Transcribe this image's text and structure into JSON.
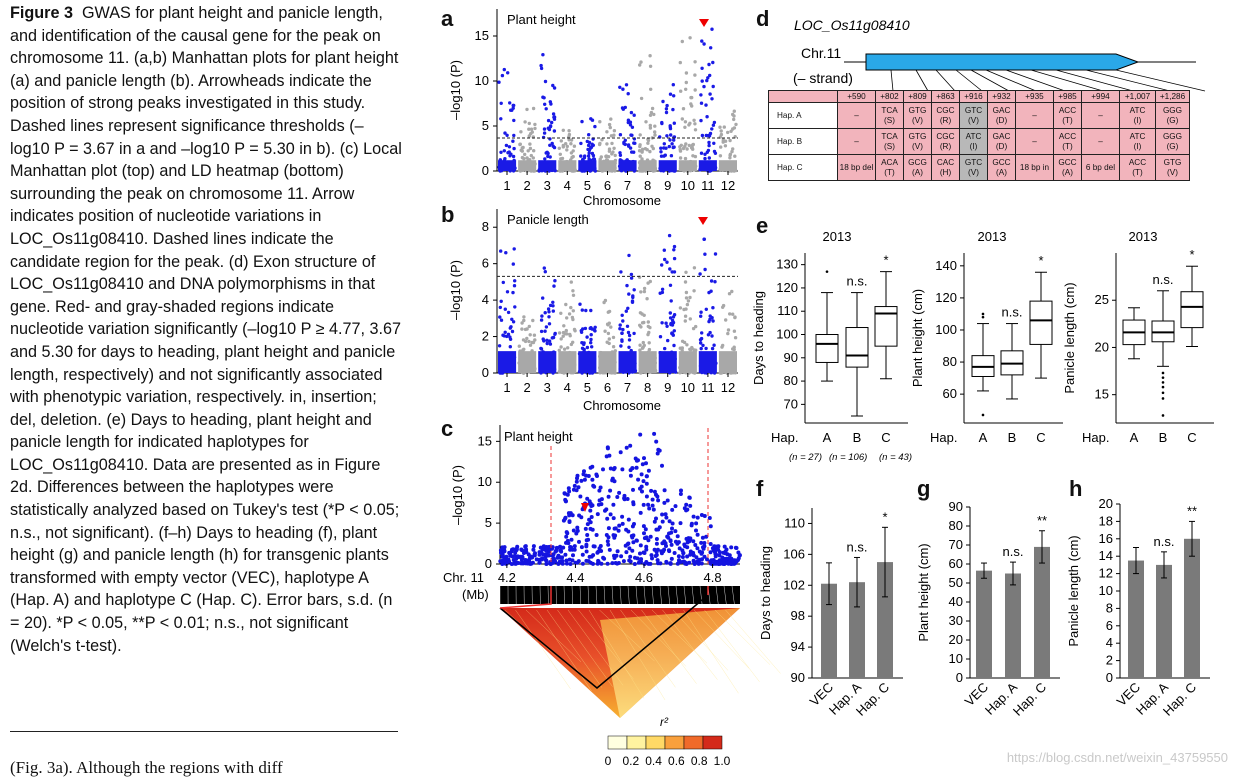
{
  "caption": {
    "fig_label": "Figure 3",
    "title": "GWAS for plant height and panicle length, and identification of the causal gene for the peak on chromosome 11.",
    "ab_text": "(a,b) Manhattan plots for plant height (a) and panicle length (b). Arrowheads indicate the position of strong peaks investigated in this study. Dashed lines represent significance thresholds (–log10 P = 3.67 in a and –log10 P = 5.30 in b).",
    "c_text": "(c) Local Manhattan plot (top) and LD heatmap (bottom) surrounding the peak on chromosome 11. Arrow indicates position of nucleotide variations in LOC_Os11g08410. Dashed lines indicate the candidate region for the peak.",
    "d_text": "(d) Exon structure of LOC_Os11g08410 and DNA polymorphisms in that gene. Red- and gray-shaded regions indicate nucleotide variation significantly (–log10 P ≥ 4.77, 3.67 and 5.30 for days to heading, plant height and panicle length, respectively) and not significantly associated with phenotypic variation, respectively. in, insertion; del, deletion.",
    "e_text": "(e) Days to heading, plant height and panicle length for indicated haplotypes for LOC_Os11g08410. Data are presented as in Figure 2d. Differences between the haplotypes were statistically analyzed based on Tukey's test (*P < 0.05; n.s., not significant).",
    "fh_text": "(f–h) Days to heading (f), plant height (g) and panicle length (h) for transgenic plants transformed with empty vector (VEC), haplotype A (Hap. A) and haplotype C (Hap. C). Error bars, s.d. (n = 20). *P < 0.05, **P < 0.01; n.s., not significant (Welch's t-test).",
    "body_fragment": "(Fig. 3a). Although the regions with diff"
  },
  "panel_labels": {
    "a": "a",
    "b": "b",
    "c": "c",
    "d": "d",
    "e": "e",
    "f": "f",
    "g": "g",
    "h": "h"
  },
  "watermark": "https://blog.csdn.net/weixin_43759550",
  "chart_data": [
    {
      "id": "a",
      "type": "scatter",
      "title": "Plant height",
      "xlabel": "Chromosome",
      "ylabel": "–log10 (P)",
      "categories": [
        "1",
        "2",
        "3",
        "4",
        "5",
        "6",
        "7",
        "8",
        "9",
        "10",
        "11",
        "12"
      ],
      "ylim": [
        0,
        18
      ],
      "yticks": [
        0,
        5,
        10,
        15
      ],
      "threshold": 3.67,
      "peak_max_by_chromosome": [
        12,
        7,
        13,
        5,
        6,
        6,
        10,
        13,
        10,
        15,
        16.5,
        7
      ]
    },
    {
      "id": "b",
      "type": "scatter",
      "title": "Panicle length",
      "xlabel": "Chromosome",
      "ylabel": "–log10 (P)",
      "categories": [
        "1",
        "2",
        "3",
        "4",
        "5",
        "6",
        "7",
        "8",
        "9",
        "10",
        "11",
        "12"
      ],
      "ylim": [
        0,
        9
      ],
      "yticks": [
        0,
        2,
        4,
        6,
        8
      ],
      "threshold": 5.3,
      "peak_max_by_chromosome": [
        7,
        3.5,
        6,
        5,
        4,
        4,
        6.5,
        6,
        8.5,
        6,
        8.5,
        4.5
      ]
    },
    {
      "id": "c",
      "type": "scatter",
      "title": "Plant height",
      "ylabel": "–log10 (P)",
      "xlabel_line1": "Chr. 11",
      "xlabel_line2": "(Mb)",
      "xlim": [
        4.18,
        4.88
      ],
      "xticks": [
        "4.2",
        "4.4",
        "4.6",
        "4.8"
      ],
      "ylim": [
        0,
        17
      ],
      "yticks": [
        0,
        5,
        10,
        15
      ],
      "candidate_region_mb": [
        4.33,
        4.79
      ],
      "ld_legend_title": "r²",
      "ld_legend_ticks": [
        "0",
        "0.2",
        "0.4",
        "0.6",
        "0.8",
        "1.0"
      ]
    },
    {
      "id": "d",
      "type": "table",
      "gene": "LOC_Os11g08410",
      "chromosome": "Chr.11",
      "strand": "(– strand)",
      "positions": [
        "+590",
        "+802",
        "+809",
        "+863",
        "+916",
        "+932",
        "+935",
        "+985",
        "+994",
        "+1,007",
        "+1,286"
      ],
      "haplotypes": [
        {
          "name": "Hap. A",
          "cells": [
            [
              "–",
              ""
            ],
            [
              "TCA",
              "(S)"
            ],
            [
              "GTG",
              "(V)"
            ],
            [
              "CGC",
              "(R)"
            ],
            [
              "GTC",
              "(V)"
            ],
            [
              "GAC",
              "(D)"
            ],
            [
              "–",
              ""
            ],
            [
              "ACC",
              "(T)"
            ],
            [
              "–",
              ""
            ],
            [
              "ATC",
              "(I)"
            ],
            [
              "GGG",
              "(G)"
            ]
          ]
        },
        {
          "name": "Hap. B",
          "cells": [
            [
              "–",
              ""
            ],
            [
              "TCA",
              "(S)"
            ],
            [
              "GTG",
              "(V)"
            ],
            [
              "CGC",
              "(R)"
            ],
            [
              "ATC",
              "(I)"
            ],
            [
              "GAC",
              "(D)"
            ],
            [
              "–",
              ""
            ],
            [
              "ACC",
              "(T)"
            ],
            [
              "–",
              ""
            ],
            [
              "ATC",
              "(I)"
            ],
            [
              "GGG",
              "(G)"
            ]
          ]
        },
        {
          "name": "Hap. C",
          "cells": [
            [
              "18 bp del",
              ""
            ],
            [
              "ACA",
              "(T)"
            ],
            [
              "GCG",
              "(A)"
            ],
            [
              "CAC",
              "(H)"
            ],
            [
              "GTC",
              "(V)"
            ],
            [
              "GCC",
              "(A)"
            ],
            [
              "18 bp in",
              ""
            ],
            [
              "GCC",
              "(A)"
            ],
            [
              "6 bp del",
              ""
            ],
            [
              "ACC",
              "(T)"
            ],
            [
              "GTG",
              "(V)"
            ]
          ]
        }
      ],
      "gray_column": "+916",
      "blank_cells": [
        [
          0,
          0
        ],
        [
          0,
          6
        ],
        [
          0,
          8
        ],
        [
          1,
          0
        ],
        [
          1,
          6
        ],
        [
          1,
          8
        ]
      ]
    },
    {
      "id": "e1",
      "type": "boxplot",
      "year": "2013",
      "ylabel": "Days to heading",
      "categories": [
        "A",
        "B",
        "C"
      ],
      "xprefix": "Hap.",
      "ylim": [
        62,
        135
      ],
      "yticks": [
        70,
        80,
        90,
        100,
        110,
        120,
        130
      ],
      "boxes": [
        {
          "min": 80,
          "q1": 88,
          "median": 96,
          "q3": 100,
          "max": 118,
          "outliers": [
            127
          ]
        },
        {
          "min": 65,
          "q1": 86,
          "median": 91,
          "q3": 103,
          "max": 118,
          "outliers": []
        },
        {
          "min": 81,
          "q1": 95,
          "median": 109,
          "q3": 112,
          "max": 127,
          "outliers": []
        }
      ],
      "marks": [
        "",
        "n.s.",
        "*"
      ],
      "n_labels": [
        "(n = 27)",
        "(n = 106)",
        "(n = 43)"
      ]
    },
    {
      "id": "e2",
      "type": "boxplot",
      "year": "2013",
      "ylabel": "Plant height (cm)",
      "categories": [
        "A",
        "B",
        "C"
      ],
      "xprefix": "Hap.",
      "ylim": [
        42,
        148
      ],
      "yticks": [
        60,
        80,
        100,
        120,
        140
      ],
      "boxes": [
        {
          "min": 62,
          "q1": 71,
          "median": 77,
          "q3": 84,
          "max": 104,
          "outliers": [
            108,
            110,
            47
          ]
        },
        {
          "min": 57,
          "q1": 72,
          "median": 79,
          "q3": 87,
          "max": 104,
          "outliers": []
        },
        {
          "min": 70,
          "q1": 91,
          "median": 106,
          "q3": 118,
          "max": 136,
          "outliers": []
        }
      ],
      "marks": [
        "",
        "n.s.",
        "*"
      ]
    },
    {
      "id": "e3",
      "type": "boxplot",
      "year": "2013",
      "ylabel": "Panicle length (cm)",
      "categories": [
        "A",
        "B",
        "C"
      ],
      "xprefix": "Hap.",
      "ylim": [
        12,
        30
      ],
      "yticks": [
        15,
        20,
        25
      ],
      "boxes": [
        {
          "min": 18.8,
          "q1": 20.3,
          "median": 21.6,
          "q3": 22.9,
          "max": 24.2,
          "outliers": []
        },
        {
          "min": 18.0,
          "q1": 20.6,
          "median": 21.6,
          "q3": 22.8,
          "max": 26.0,
          "outliers": [
            17.3,
            16.8,
            16.3,
            15.8,
            15.2,
            14.6,
            12.8
          ]
        },
        {
          "min": 20.1,
          "q1": 22.1,
          "median": 24.3,
          "q3": 25.9,
          "max": 28.6,
          "outliers": []
        }
      ],
      "marks": [
        "",
        "n.s.",
        "*"
      ]
    },
    {
      "id": "f",
      "type": "bar",
      "ylabel": "Days to heading",
      "categories": [
        "VEC",
        "Hap. A",
        "Hap. C"
      ],
      "ylim": [
        90,
        112
      ],
      "yticks": [
        90,
        94,
        98,
        102,
        106,
        110
      ],
      "values": [
        102.2,
        102.4,
        105.0
      ],
      "errors": [
        2.7,
        3.2,
        4.5
      ],
      "marks": [
        "",
        "n.s.",
        "*"
      ]
    },
    {
      "id": "g",
      "type": "bar",
      "ylabel": "Plant height (cm)",
      "categories": [
        "VEC",
        "Hap. A",
        "Hap. C"
      ],
      "ylim": [
        0,
        90
      ],
      "yticks": [
        0,
        10,
        20,
        30,
        40,
        50,
        60,
        70,
        80,
        90
      ],
      "values": [
        56.5,
        55.0,
        69.0
      ],
      "errors": [
        4.0,
        6.0,
        8.5
      ],
      "marks": [
        "",
        "n.s.",
        "**"
      ]
    },
    {
      "id": "h",
      "type": "bar",
      "ylabel": "Panicle length (cm)",
      "categories": [
        "VEC",
        "Hap. A",
        "Hap. C"
      ],
      "ylim": [
        0,
        20
      ],
      "yticks": [
        0,
        2,
        4,
        6,
        8,
        10,
        12,
        14,
        16,
        18,
        20
      ],
      "values": [
        13.5,
        13.0,
        16.0
      ],
      "errors": [
        1.5,
        1.5,
        2.0
      ],
      "marks": [
        "",
        "n.s.",
        "**"
      ]
    }
  ]
}
